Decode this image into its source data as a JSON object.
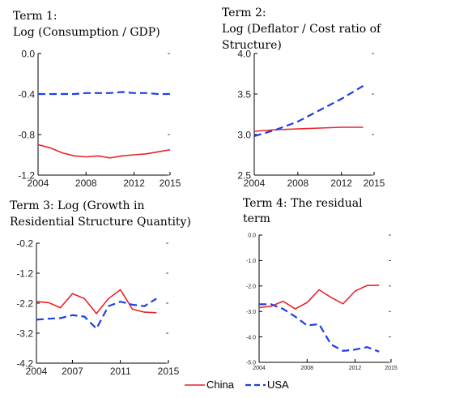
{
  "legend": [
    {
      "name": "China",
      "color": "#e8232a",
      "dash": "solid"
    },
    {
      "name": "USA",
      "color": "#1f3fe0",
      "dash": "dashed"
    }
  ],
  "chart_data": [
    {
      "type": "line",
      "title": [
        "Term 1:",
        "Log (Consumption / GDP)"
      ],
      "xlim": [
        2004,
        2015
      ],
      "ylim": [
        -1.2,
        0.0
      ],
      "xticks": [
        "2004",
        "2008",
        "2012",
        "2015"
      ],
      "yticks": [
        "0.0",
        "-0.4",
        "-0.8",
        "-1.2"
      ],
      "series": [
        {
          "name": "China",
          "x": [
            2004,
            2005,
            2006,
            2007,
            2008,
            2009,
            2010,
            2011,
            2012,
            2013,
            2014,
            2015
          ],
          "values": [
            -0.9,
            -0.93,
            -0.98,
            -1.01,
            -1.02,
            -1.01,
            -1.03,
            -1.01,
            -1.0,
            -0.99,
            -0.97,
            -0.95
          ]
        },
        {
          "name": "USA",
          "x": [
            2004,
            2005,
            2006,
            2007,
            2008,
            2009,
            2010,
            2011,
            2012,
            2013,
            2014,
            2015
          ],
          "values": [
            -0.4,
            -0.4,
            -0.4,
            -0.4,
            -0.39,
            -0.39,
            -0.39,
            -0.38,
            -0.39,
            -0.39,
            -0.4,
            -0.4
          ]
        }
      ]
    },
    {
      "type": "line",
      "title": [
        "Term 2:",
        "Log (Deflator / Cost ratio of",
        "Structure)"
      ],
      "xlim": [
        2004,
        2015
      ],
      "ylim": [
        2.5,
        4.0
      ],
      "xticks": [
        "2004",
        "2008",
        "2012",
        "2015"
      ],
      "yticks": [
        "4.0",
        "3.5",
        "3.0",
        "2.5"
      ],
      "series": [
        {
          "name": "China",
          "x": [
            2004,
            2006,
            2008,
            2010,
            2012,
            2014
          ],
          "values": [
            3.04,
            3.06,
            3.07,
            3.08,
            3.09,
            3.09
          ]
        },
        {
          "name": "USA",
          "x": [
            2004,
            2006,
            2008,
            2010,
            2012,
            2014
          ],
          "values": [
            2.98,
            3.06,
            3.16,
            3.3,
            3.44,
            3.6
          ]
        }
      ]
    },
    {
      "type": "line",
      "title": [
        "Term 3: Log (Growth in",
        "Residential Structure Quantity)"
      ],
      "xlim": [
        2004,
        2015
      ],
      "ylim": [
        -4.2,
        -0.2
      ],
      "xticks": [
        "2004",
        "2007",
        "2011",
        "2015"
      ],
      "yticks": [
        "-0.2",
        "-1.2",
        "-2.2",
        "-3.2",
        "-4.2"
      ],
      "series": [
        {
          "name": "China",
          "x": [
            2004,
            2005,
            2006,
            2007,
            2008,
            2009,
            2010,
            2011,
            2012,
            2013,
            2014
          ],
          "values": [
            -2.15,
            -2.18,
            -2.35,
            -1.88,
            -2.05,
            -2.55,
            -2.05,
            -1.75,
            -2.4,
            -2.5,
            -2.52
          ]
        },
        {
          "name": "USA",
          "x": [
            2004,
            2005,
            2006,
            2007,
            2008,
            2009,
            2010,
            2011,
            2012,
            2013,
            2014
          ],
          "values": [
            -2.75,
            -2.72,
            -2.7,
            -2.6,
            -2.65,
            -3.05,
            -2.3,
            -2.15,
            -2.25,
            -2.3,
            -2.05
          ]
        }
      ]
    },
    {
      "type": "line",
      "title": [
        "Term 4: The residual",
        "term"
      ],
      "xlim": [
        2004,
        2015
      ],
      "ylim": [
        -5.0,
        0.0
      ],
      "xticks": [
        "2004",
        "2008",
        "2012",
        "2015"
      ],
      "yticks": [
        "0.0",
        "-1.0",
        "-2.0",
        "-3.0",
        "-4.0",
        "-5.0"
      ],
      "series": [
        {
          "name": "China",
          "x": [
            2004,
            2005,
            2006,
            2007,
            2008,
            2009,
            2010,
            2011,
            2012,
            2013,
            2014
          ],
          "values": [
            -2.85,
            -2.8,
            -2.6,
            -2.9,
            -2.65,
            -2.15,
            -2.45,
            -2.7,
            -2.2,
            -1.98,
            -1.97
          ]
        },
        {
          "name": "USA",
          "x": [
            2004,
            2005,
            2006,
            2007,
            2008,
            2009,
            2010,
            2011,
            2012,
            2013,
            2014
          ],
          "values": [
            -2.72,
            -2.72,
            -2.9,
            -3.2,
            -3.55,
            -3.5,
            -4.3,
            -4.55,
            -4.5,
            -4.4,
            -4.58
          ]
        }
      ]
    }
  ]
}
